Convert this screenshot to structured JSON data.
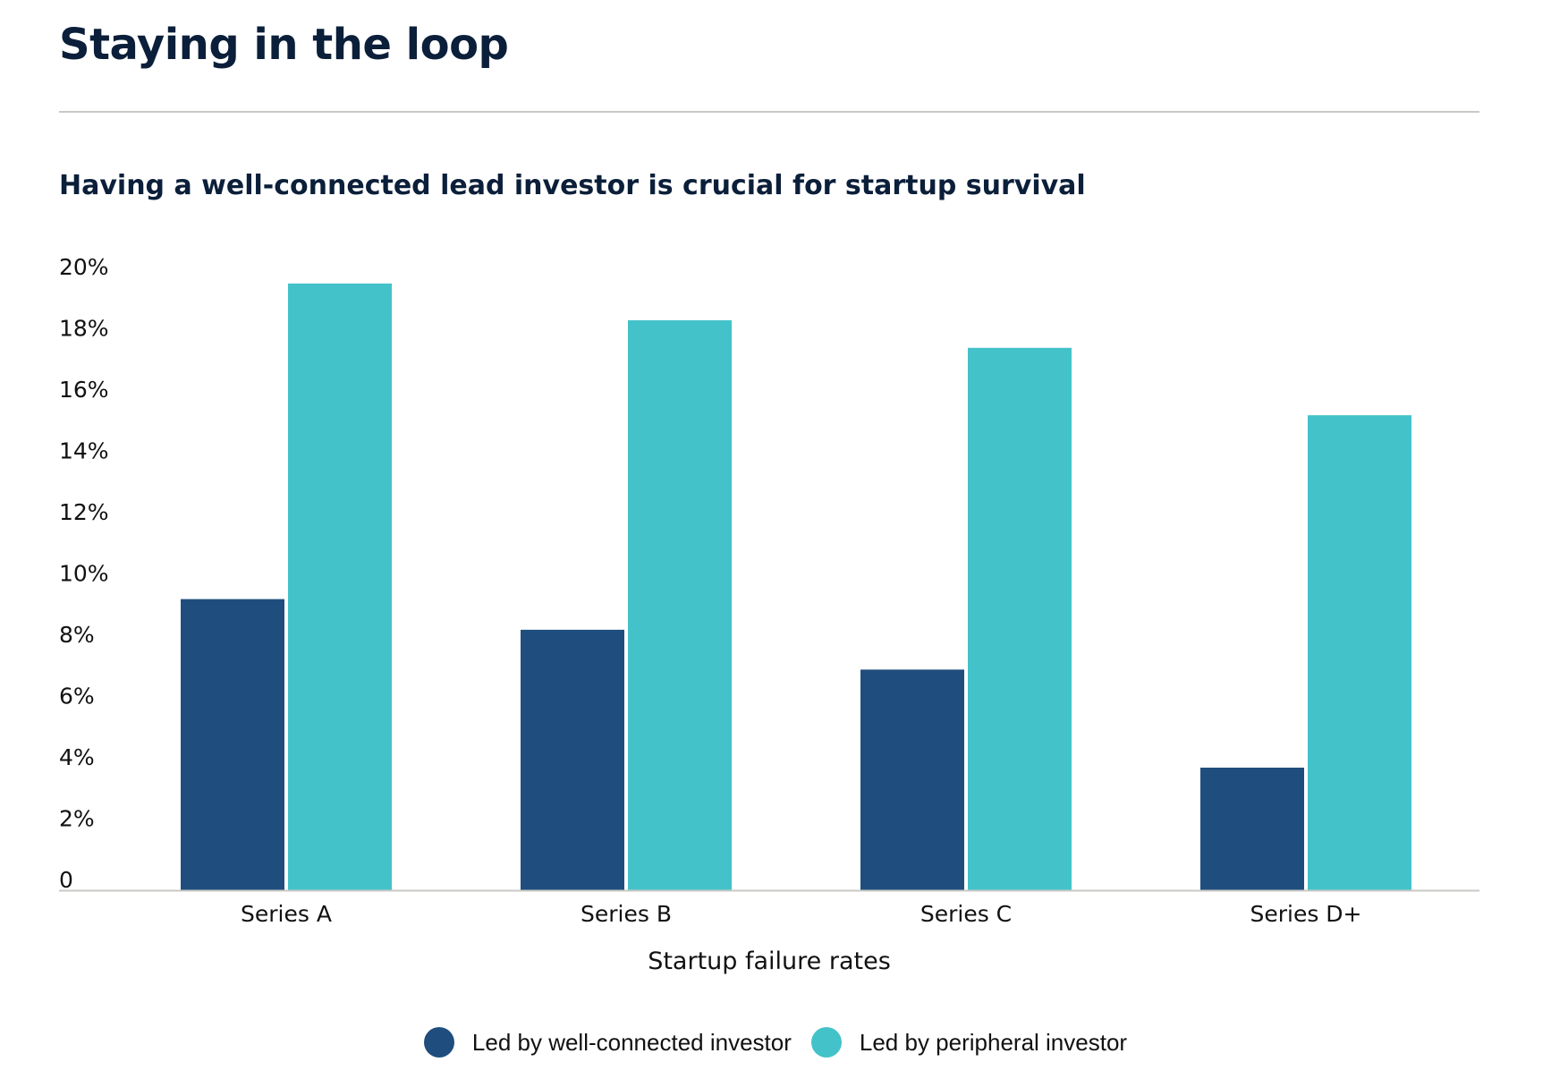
{
  "page": {
    "title": "Staying in the loop"
  },
  "chart_data": {
    "type": "bar",
    "title": "Having a well-connected lead investor is crucial for startup survival",
    "xlabel": "Startup failure rates",
    "ylabel": "",
    "categories": [
      "Series A",
      "Series B",
      "Series C",
      "Series D+"
    ],
    "series": [
      {
        "name": "Led by well-connected investor",
        "color": "#1f4e7e",
        "values": [
          9.5,
          8.5,
          7.2,
          4.0
        ]
      },
      {
        "name": "Led by peripheral investor",
        "color": "#43c2c9",
        "values": [
          19.8,
          18.6,
          17.7,
          15.5
        ]
      }
    ],
    "ylim": [
      0,
      20
    ],
    "yticks": [
      0,
      2,
      4,
      6,
      8,
      10,
      12,
      14,
      16,
      18,
      20
    ],
    "ytick_labels": [
      "0",
      "2%",
      "4%",
      "6%",
      "8%",
      "10%",
      "12%",
      "14%",
      "16%",
      "18%",
      "20%"
    ],
    "grid": false,
    "legend_position": "bottom-center"
  }
}
